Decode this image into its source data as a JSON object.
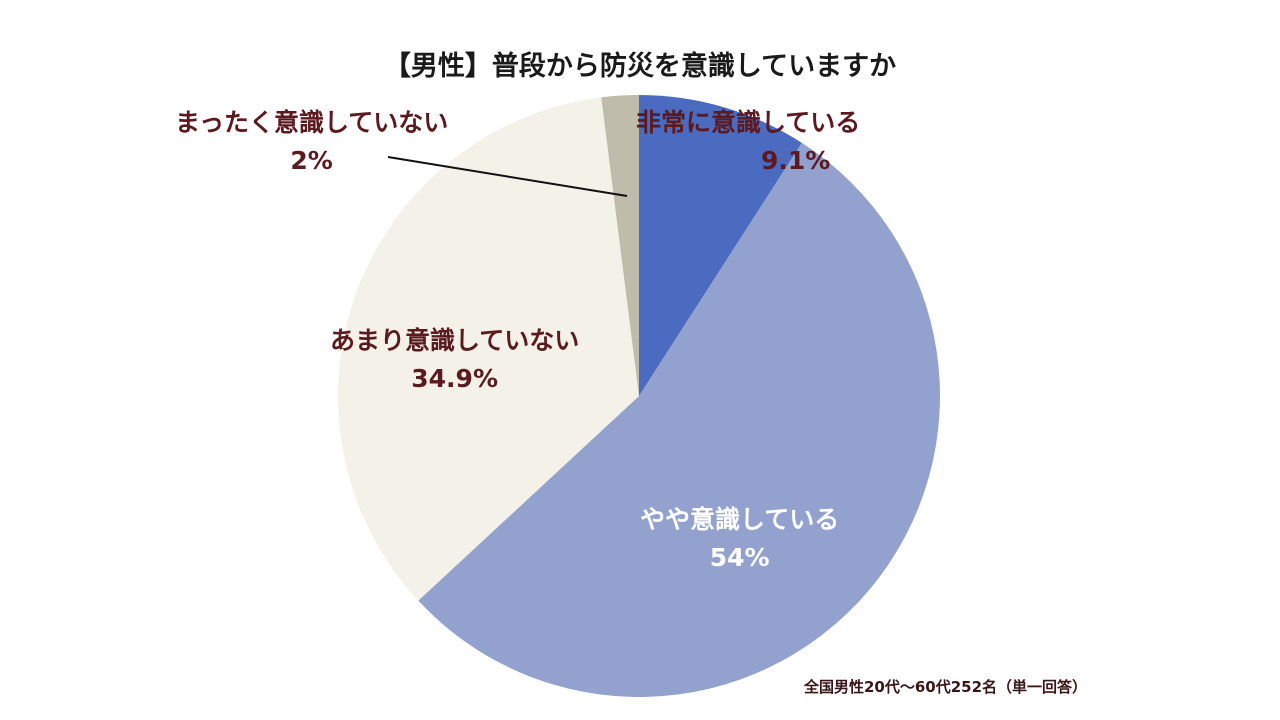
{
  "chart_data": {
    "type": "pie",
    "title": "【男性】普段から防災を意識していますか",
    "start": "top",
    "direction": "clockwise",
    "slices": [
      {
        "label": "非常に意識している",
        "value": 9.1,
        "value_label": "9.1%",
        "color": "#4a6bbf"
      },
      {
        "label": "やや意識している",
        "value": 54,
        "value_label": "54%",
        "color": "#93a1cf"
      },
      {
        "label": "あまり意識していない",
        "value": 34.9,
        "value_label": "34.9%",
        "color": "#f3f1e8"
      },
      {
        "label": "まったく意識していない",
        "value": 2,
        "value_label": "2%",
        "color": "#bfbcab"
      }
    ],
    "footnote": "全国男性20代〜60代252名（単一回答）",
    "label_color": "#5a1a1f"
  }
}
